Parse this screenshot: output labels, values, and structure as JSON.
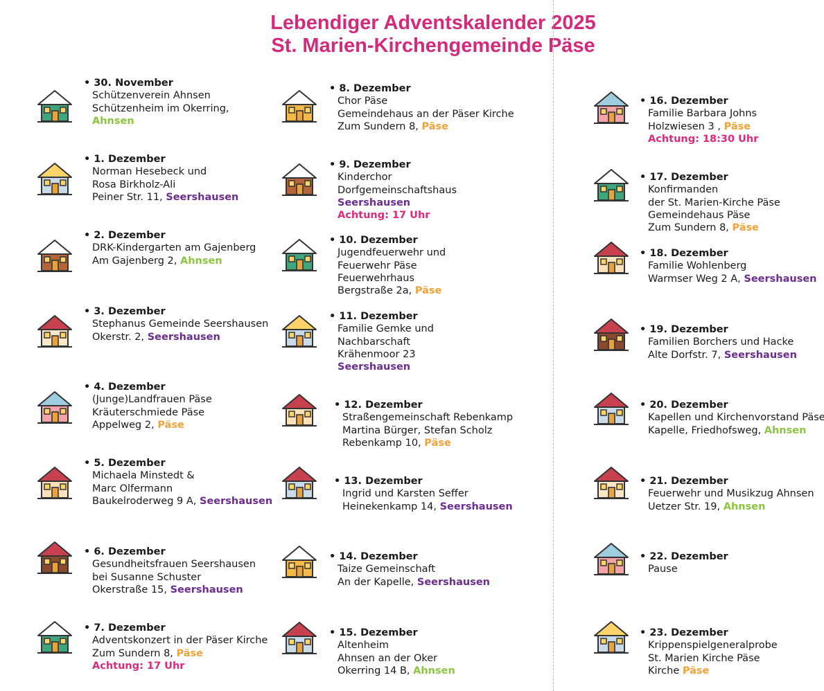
{
  "header": {
    "title_line1": "Lebendiger Adventskalender 2025",
    "title_line2": "St. Marien-Kirchengemeinde Päse"
  },
  "colors": {
    "title": "#d42a7c",
    "Ahnsen": "#8cc53f",
    "Seershausen": "#6b2d8f",
    "Päse": "#f0a23a",
    "alert": "#e0287c"
  },
  "columns": [
    [
      {
        "date": "30. November",
        "icon": {
          "name": "snowy-house-icon",
          "roof": "#ffffff",
          "wall": "#3fa57a"
        },
        "lines": [
          {
            "t": "Schützenverein Ahnsen"
          },
          {
            "t": "Schützenheim im Okerring,"
          },
          {
            "t": "",
            "hl": "Ahnsen",
            "c": "ahnsen"
          }
        ]
      },
      {
        "date": "1. Dezember",
        "icon": {
          "name": "house-icon",
          "roof": "#fcd46a",
          "wall": "#c9dbe9"
        },
        "lines": [
          {
            "t": "Norman Hesebeck und"
          },
          {
            "t": "Rosa Birkholz-Ali"
          },
          {
            "t": "Peiner Str. 11, ",
            "hl": "Seershausen",
            "c": "seers"
          }
        ]
      },
      {
        "date": "2. Dezember",
        "icon": {
          "name": "log-cabin-icon",
          "roof": "#ffffff",
          "wall": "#b5653a"
        },
        "lines": [
          {
            "t": "DRK-Kindergarten am Gajenberg"
          },
          {
            "t": "Am Gajenberg 2, ",
            "hl": "Ahnsen",
            "c": "ahnsen"
          }
        ]
      },
      {
        "date": "3. Dezember",
        "icon": {
          "name": "cottage-icon",
          "roof": "#c8414e",
          "wall": "#fbe6c8"
        },
        "lines": [
          {
            "t": "Stephanus Gemeinde Seershausen"
          },
          {
            "t": "Okerstr. 2, ",
            "hl": "Seershausen",
            "c": "seers"
          }
        ]
      },
      {
        "date": "4. Dezember",
        "icon": {
          "name": "house-icon",
          "roof": "#9fcde0",
          "wall": "#f2a3a8"
        },
        "lines": [
          {
            "t": "(Junge)Landfrauen Päse"
          },
          {
            "t": "Kräuterschmiede Päse"
          },
          {
            "t": "Appelweg 2, ",
            "hl": "Päse",
            "c": "paese"
          }
        ]
      },
      {
        "date": "5. Dezember",
        "icon": {
          "name": "snowy-house-icon",
          "roof": "#c8414e",
          "wall": "#fbe0b8"
        },
        "lines": [
          {
            "t": "Michaela Minstedt &"
          },
          {
            "t": "Marc Olfermann"
          },
          {
            "t": "Baukelroderweg 9 A, ",
            "hl": "Seershausen",
            "c": "seers"
          }
        ]
      },
      {
        "date": "6. Dezember",
        "icon": {
          "name": "barn-house-icon",
          "roof": "#c8414e",
          "wall": "#8a4a2e"
        },
        "lines": [
          {
            "t": "Gesundheitsfrauen Seershausen"
          },
          {
            "t": "bei Susanne Schuster"
          },
          {
            "t": "Okerstraße 15, ",
            "hl": "Seershausen",
            "c": "seers"
          }
        ]
      },
      {
        "date": "7. Dezember",
        "icon": {
          "name": "snowy-house-icon",
          "roof": "#ffffff",
          "wall": "#3fa57a"
        },
        "lines": [
          {
            "t": "Adventskonzert in der Päser Kirche"
          },
          {
            "t": "Zum Sundern 8, ",
            "hl": "Päse",
            "c": "paese"
          },
          {
            "t": "",
            "hl": "Achtung: 17 Uhr",
            "c": "alert"
          }
        ]
      }
    ],
    [
      {
        "date": "8. Dezember",
        "icon": {
          "name": "house-icon",
          "roof": "#ffffff",
          "wall": "#f5b94a"
        },
        "lines": [
          {
            "t": "Chor Päse"
          },
          {
            "t": "Gemeindehaus an der Päser Kirche"
          },
          {
            "t": "Zum Sundern 8, ",
            "hl": "Päse",
            "c": "paese"
          }
        ]
      },
      {
        "date": "9. Dezember",
        "icon": {
          "name": "log-cabin-icon",
          "roof": "#ffffff",
          "wall": "#b5653a"
        },
        "lines": [
          {
            "t": "Kinderchor"
          },
          {
            "t": "Dorfgemeinschaftshaus"
          },
          {
            "t": "",
            "hl": "Seershausen",
            "c": "seers"
          },
          {
            "t": "",
            "hl": "Achtung: 17 Uhr",
            "c": "alert"
          }
        ]
      },
      {
        "date": "10. Dezember",
        "icon": {
          "name": "snowy-house-icon",
          "roof": "#ffffff",
          "wall": "#3fa57a"
        },
        "lines": [
          {
            "t": "Jugendfeuerwehr und"
          },
          {
            "t": "Feuerwehr Päse"
          },
          {
            "t": "Feuerwehrhaus"
          },
          {
            "t": "Bergstraße 2a, ",
            "hl": "Päse",
            "c": "paese"
          }
        ]
      },
      {
        "date": "11. Dezember",
        "icon": {
          "name": "house-icon",
          "roof": "#fcd46a",
          "wall": "#c9dbe9"
        },
        "lines": [
          {
            "t": "Familie Gemke und"
          },
          {
            "t": "Nachbarschaft"
          },
          {
            "t": "Krähenmoor 23"
          },
          {
            "t": "",
            "hl": "Seershausen",
            "c": "seers"
          }
        ]
      },
      {
        "date": "12. Dezember",
        "icon": {
          "name": "snowy-house-icon",
          "roof": "#c8414e",
          "wall": "#fbe0b8"
        },
        "lines": [
          {
            "t": "Straßengemeinschaft Rebenkamp"
          },
          {
            "t": "Martina Bürger, Stefan Scholz"
          },
          {
            "t": "Rebenkamp 10, ",
            "hl": "Päse",
            "c": "paese"
          }
        ]
      },
      {
        "date": "13. Dezember",
        "icon": {
          "name": "house-with-tree-icon",
          "roof": "#c8414e",
          "wall": "#c9dbe9"
        },
        "lines": [
          {
            "t": "Ingrid und Karsten Seffer"
          },
          {
            "t": "Heinekenkamp 14, ",
            "hl": "Seershausen",
            "c": "seers"
          }
        ]
      },
      {
        "date": "14. Dezember",
        "icon": {
          "name": "house-icon",
          "roof": "#ffffff",
          "wall": "#f5b94a"
        },
        "lines": [
          {
            "t": "Taize Gemeinschaft"
          },
          {
            "t": "An der Kapelle, ",
            "hl": "Seershausen",
            "c": "seers"
          }
        ]
      },
      {
        "date": "15. Dezember",
        "icon": {
          "name": "house-with-tree-icon",
          "roof": "#c8414e",
          "wall": "#c9dbe9"
        },
        "lines": [
          {
            "t": "Altenheim"
          },
          {
            "t": "Ahnsen an der Oker"
          },
          {
            "t": "Okerring 14 B, ",
            "hl": "Ahnsen",
            "c": "ahnsen"
          }
        ]
      }
    ],
    [
      {
        "date": "16. Dezember",
        "icon": {
          "name": "house-icon",
          "roof": "#9fcde0",
          "wall": "#f2a3a8"
        },
        "lines": [
          {
            "t": "Familie Barbara Johns"
          },
          {
            "t": "Holzwiesen 3 , ",
            "hl": "Päse",
            "c": "paese"
          },
          {
            "t": "",
            "hl": "Achtung: 18:30 Uhr",
            "c": "alert"
          }
        ]
      },
      {
        "date": "17. Dezember",
        "icon": {
          "name": "snowy-house-icon",
          "roof": "#ffffff",
          "wall": "#3fa57a"
        },
        "lines": [
          {
            "t": "Konfirmanden"
          },
          {
            "t": "der St. Marien-Kirche Päse"
          },
          {
            "t": "Gemeindehaus Päse"
          },
          {
            "t": "Zum Sundern 8, ",
            "hl": "Päse",
            "c": "paese"
          }
        ]
      },
      {
        "date": "18. Dezember",
        "icon": {
          "name": "snowy-house-icon",
          "roof": "#c8414e",
          "wall": "#fbe0b8"
        },
        "lines": [
          {
            "t": "Familie Wohlenberg"
          },
          {
            "t": "Warmser Weg 2 A, ",
            "hl": "Seershausen",
            "c": "seers"
          }
        ]
      },
      {
        "date": "19. Dezember",
        "icon": {
          "name": "barn-house-icon",
          "roof": "#c8414e",
          "wall": "#8a4a2e"
        },
        "lines": [
          {
            "t": "Familien Borchers und Hacke"
          },
          {
            "t": "Alte Dorfstr. 7, ",
            "hl": "Seershausen",
            "c": "seers"
          }
        ]
      },
      {
        "date": "20. Dezember",
        "icon": {
          "name": "house-with-tree-icon",
          "roof": "#c8414e",
          "wall": "#c9dbe9"
        },
        "lines": [
          {
            "t": "Kapellen und Kirchenvorstand Päse"
          },
          {
            "t": "Kapelle, Friedhofsweg, ",
            "hl": "Ahnsen",
            "c": "ahnsen"
          }
        ]
      },
      {
        "date": "21. Dezember",
        "icon": {
          "name": "cottage-icon",
          "roof": "#c8414e",
          "wall": "#fbe6c8"
        },
        "lines": [
          {
            "t": "Feuerwehr und Musikzug Ahnsen"
          },
          {
            "t": "Uetzer Str. 19, ",
            "hl": "Ahnsen",
            "c": "ahnsen"
          }
        ]
      },
      {
        "date": "22. Dezember",
        "icon": {
          "name": "house-icon",
          "roof": "#9fcde0",
          "wall": "#f2a3a8"
        },
        "lines": [
          {
            "t": "Pause"
          }
        ]
      },
      {
        "date": "23. Dezember",
        "icon": {
          "name": "house-icon",
          "roof": "#fcd46a",
          "wall": "#c9dbe9"
        },
        "lines": [
          {
            "t": "Krippenspielgeneralprobe"
          },
          {
            "t": "St. Marien Kirche Päse"
          },
          {
            "t": "Kirche ",
            "hl": "Päse",
            "c": "paese"
          }
        ]
      }
    ]
  ]
}
